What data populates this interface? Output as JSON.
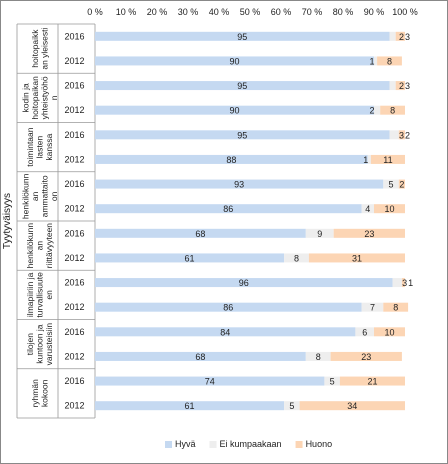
{
  "chart_data": {
    "type": "bar",
    "orientation": "horizontal",
    "stacked": true,
    "ylabel": "Tyytyväisyys",
    "xlim": [
      0,
      100
    ],
    "x_ticks": [
      "0 %",
      "10 %",
      "20 %",
      "30 %",
      "40 %",
      "50 %",
      "60 %",
      "70 %",
      "80 %",
      "90 %",
      "100 %"
    ],
    "legend_position": "bottom",
    "colors": [
      "#c5d9f1",
      "#eeeeee",
      "#fcd5b4"
    ],
    "series": [
      {
        "name": "Hyvä",
        "values": [
          95,
          90,
          95,
          90,
          95,
          88,
          93,
          86,
          68,
          61,
          96,
          86,
          84,
          68,
          74,
          61
        ]
      },
      {
        "name": "Ei kumpaakaan",
        "values": [
          2,
          1,
          2,
          2,
          3,
          1,
          5,
          4,
          9,
          8,
          3,
          7,
          6,
          8,
          5,
          5
        ]
      },
      {
        "name": "Huono",
        "values": [
          3,
          8,
          3,
          8,
          2,
          11,
          2,
          10,
          23,
          31,
          1,
          8,
          10,
          23,
          21,
          34
        ]
      }
    ],
    "groups": [
      {
        "label": "hoitopaikk an yleisesti",
        "lines": [
          "hoitopaikk",
          "an yleisesti"
        ]
      },
      {
        "label": "kodin ja hoitopaikan yhteistyöhö n",
        "lines": [
          "kodin ja",
          "hoitopaikan",
          "yhteistyöhö",
          "n"
        ]
      },
      {
        "label": "toimintaan lasten kanssa",
        "lines": [
          "toimintaan",
          "lasten",
          "kanssa"
        ]
      },
      {
        "label": "henkilökunn an ammattaito on",
        "lines": [
          "henkilökunn",
          "an",
          "ammattaito",
          "on"
        ]
      },
      {
        "label": "henkilökunn an riittävyyteen",
        "lines": [
          "henkilökunn",
          "an",
          "riittävyyteen"
        ]
      },
      {
        "label": "ilmapiiriin ja turvallisuute en",
        "lines": [
          "ilmapiiriin ja",
          "turvallisuute",
          "en"
        ]
      },
      {
        "label": "tilojen kuntoon ja varusteisiin",
        "lines": [
          "tilojen",
          "kuntoon ja",
          "varusteisiin"
        ]
      },
      {
        "label": "ryhmän kokoon",
        "lines": [
          "ryhmän",
          "kokoon"
        ]
      }
    ],
    "years": [
      "2016",
      "2012",
      "2016",
      "2012",
      "2016",
      "2012",
      "2016",
      "2012",
      "2016",
      "2012",
      "2016",
      "2012",
      "2016",
      "2012",
      "2016",
      "2012"
    ]
  }
}
